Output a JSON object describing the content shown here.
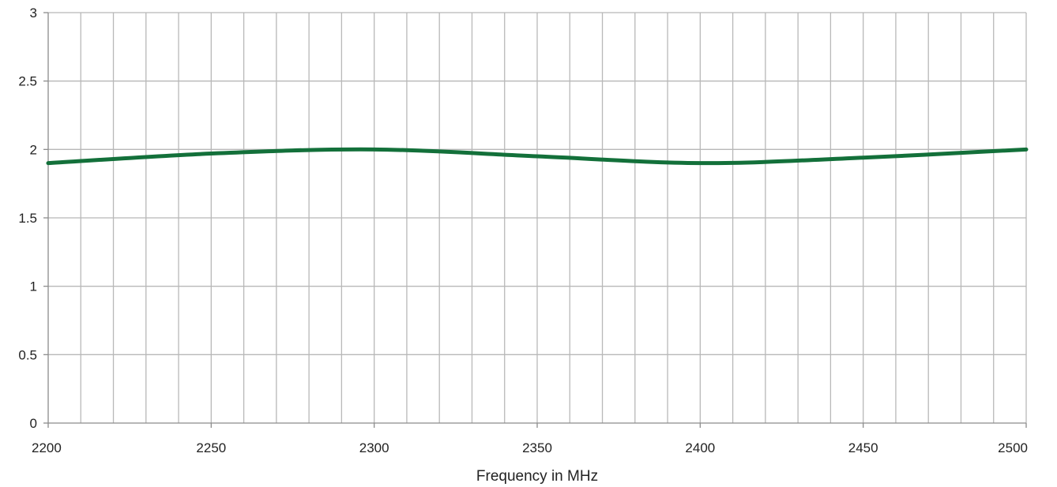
{
  "chart_data": {
    "type": "line",
    "title": "",
    "xlabel": "Frequency in MHz",
    "ylabel": "",
    "xlim": [
      2200,
      2500
    ],
    "ylim": [
      0,
      3
    ],
    "x_ticks": [
      2200,
      2250,
      2300,
      2350,
      2400,
      2450,
      2500
    ],
    "y_ticks": [
      0,
      0.5,
      1,
      1.5,
      2,
      2.5,
      3
    ],
    "x_tick_labels": [
      "2200",
      "2250",
      "2300",
      "2350",
      "2400",
      "2450",
      "2500"
    ],
    "y_tick_labels": [
      "0",
      "0.5",
      "1",
      "1.5",
      "2",
      "2.5",
      "3"
    ],
    "x_minor_step": 10,
    "grid": true,
    "legend": "none",
    "series": [
      {
        "color": "#13703a",
        "x": [
          2200,
          2250,
          2300,
          2350,
          2400,
          2450,
          2500
        ],
        "y": [
          1.9,
          1.97,
          2.0,
          1.95,
          1.9,
          1.94,
          2.0
        ]
      }
    ]
  }
}
